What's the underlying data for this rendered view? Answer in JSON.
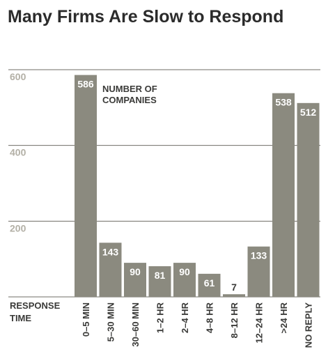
{
  "chart_data": {
    "type": "bar",
    "title": "Many Firms Are Slow to Respond",
    "series_note": [
      "NUMBER OF",
      "COMPANIES"
    ],
    "xlabel": [
      "RESPONSE",
      "TIME"
    ],
    "ylabel": "",
    "ylim": [
      0,
      600
    ],
    "yticks": [
      200,
      400,
      600
    ],
    "grid": true,
    "categories": [
      "0–5 MIN",
      "5–30 MIN",
      "30–60 MIN",
      "1–2 HR",
      "2–4 HR",
      "4–8 HR",
      "8–12 HR",
      "12–24 HR",
      ">24 HR",
      "NO REPLY"
    ],
    "values": [
      586,
      143,
      90,
      81,
      90,
      61,
      7,
      133,
      538,
      512
    ],
    "bar_color": "#8b8a7f"
  }
}
